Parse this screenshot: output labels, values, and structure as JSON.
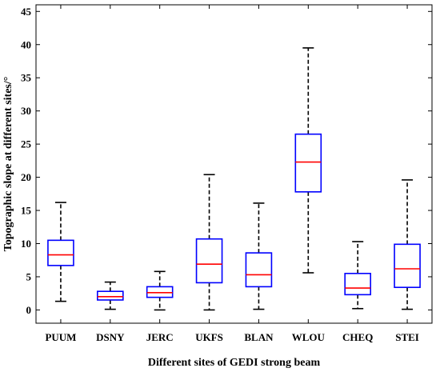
{
  "chart_data": {
    "type": "box",
    "title": "",
    "xlabel": "Different sites of GEDI strong beam",
    "ylabel": "Topographic slope at different sites/°",
    "ylim": [
      -2,
      46
    ],
    "yticks": [
      0,
      5,
      10,
      15,
      20,
      25,
      30,
      35,
      40,
      45
    ],
    "grid": false,
    "categories": [
      "PUUM",
      "DSNY",
      "JERC",
      "UKFS",
      "BLAN",
      "WLOU",
      "CHEQ",
      "STEI"
    ],
    "boxes": [
      {
        "name": "PUUM",
        "min": 1.3,
        "q1": 6.7,
        "median": 8.3,
        "q3": 10.5,
        "max": 16.2
      },
      {
        "name": "DSNY",
        "min": 0.1,
        "q1": 1.5,
        "median": 2.0,
        "q3": 2.8,
        "max": 4.2
      },
      {
        "name": "JERC",
        "min": 0.0,
        "q1": 1.9,
        "median": 2.6,
        "q3": 3.5,
        "max": 5.8
      },
      {
        "name": "UKFS",
        "min": 0.0,
        "q1": 4.1,
        "median": 6.9,
        "q3": 10.7,
        "max": 20.4
      },
      {
        "name": "BLAN",
        "min": 0.1,
        "q1": 3.5,
        "median": 5.3,
        "q3": 8.6,
        "max": 16.1
      },
      {
        "name": "WLOU",
        "min": 5.6,
        "q1": 17.8,
        "median": 22.3,
        "q3": 26.5,
        "max": 39.5
      },
      {
        "name": "CHEQ",
        "min": 0.2,
        "q1": 2.3,
        "median": 3.3,
        "q3": 5.5,
        "max": 10.3
      },
      {
        "name": "STEI",
        "min": 0.1,
        "q1": 3.4,
        "median": 6.2,
        "q3": 9.9,
        "max": 19.6
      }
    ],
    "colors": {
      "box": "#0000ff",
      "median": "#ff0000",
      "whisker": "#000000",
      "axis": "#000000"
    }
  }
}
